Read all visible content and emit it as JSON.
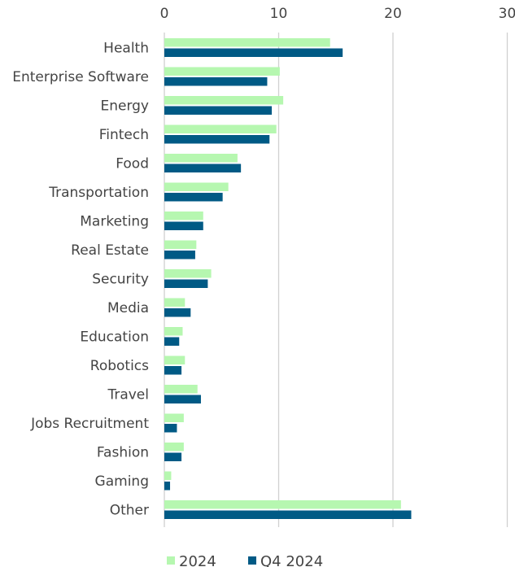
{
  "chart_data": {
    "type": "bar",
    "orientation": "horizontal",
    "categories": [
      "Health",
      "Enterprise Software",
      "Energy",
      "Fintech",
      "Food",
      "Transportation",
      "Marketing",
      "Real Estate",
      "Security",
      "Media",
      "Education",
      "Robotics",
      "Travel",
      "Jobs Recruitment",
      "Fashion",
      "Gaming",
      "Other"
    ],
    "series": [
      {
        "name": "2024",
        "color": "#b6f7b0",
        "values": [
          14.5,
          10.1,
          10.4,
          9.8,
          6.4,
          5.6,
          3.4,
          2.8,
          4.1,
          1.8,
          1.6,
          1.8,
          2.9,
          1.7,
          1.7,
          0.6,
          20.7
        ]
      },
      {
        "name": "Q4 2024",
        "color": "#005a85",
        "values": [
          15.6,
          9.0,
          9.4,
          9.2,
          6.7,
          5.1,
          3.4,
          2.7,
          3.8,
          2.3,
          1.3,
          1.5,
          3.2,
          1.1,
          1.5,
          0.5,
          21.6
        ]
      }
    ],
    "x_ticks": [
      0,
      10,
      20,
      30
    ],
    "xlim": [
      0,
      30
    ],
    "grid": true,
    "legend_position": "bottom",
    "title": "",
    "xlabel": "",
    "ylabel": ""
  }
}
